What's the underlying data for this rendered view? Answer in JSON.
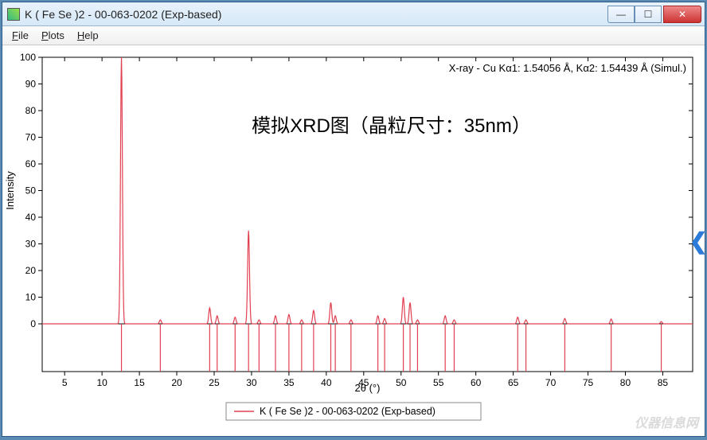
{
  "window": {
    "title": "K ( Fe Se )2 - 00-063-0202 (Exp-based)"
  },
  "menu": {
    "file": "File",
    "plots": "Plots",
    "help": "Help"
  },
  "chart": {
    "type": "line",
    "info_text": "X-ray - Cu Kα1: 1.54056 Å, Kα2: 1.54439 Å (Simul.)",
    "overlay_text": "模拟XRD图（晶粒尺寸：35nm）",
    "overlay_fontsize": 24,
    "overlay_color": "#000000",
    "xlabel": "2θ (°)",
    "ylabel": "Intensity",
    "label_fontsize": 13,
    "legend_label": "K ( Fe Se )2 - 00-063-0202 (Exp-based)",
    "xlim": [
      2,
      89
    ],
    "ylim": [
      0,
      100
    ],
    "xtick_step": 5,
    "ytick_step": 10,
    "tick_fontsize": 12,
    "background_color": "#ffffff",
    "axis_color": "#000000",
    "grid_color": "#bbbbbb",
    "line_color": "#e04050",
    "line_width": 1.2,
    "peaks": [
      {
        "x": 12.6,
        "h": 100
      },
      {
        "x": 17.8,
        "h": 1.5
      },
      {
        "x": 24.4,
        "h": 6
      },
      {
        "x": 25.4,
        "h": 3
      },
      {
        "x": 27.8,
        "h": 2.5
      },
      {
        "x": 29.6,
        "h": 35
      },
      {
        "x": 31.0,
        "h": 1.5
      },
      {
        "x": 33.2,
        "h": 3
      },
      {
        "x": 35.0,
        "h": 3.5
      },
      {
        "x": 36.7,
        "h": 1.5
      },
      {
        "x": 38.3,
        "h": 5
      },
      {
        "x": 40.6,
        "h": 8
      },
      {
        "x": 41.2,
        "h": 3
      },
      {
        "x": 43.3,
        "h": 1.5
      },
      {
        "x": 46.9,
        "h": 3
      },
      {
        "x": 47.8,
        "h": 2
      },
      {
        "x": 50.3,
        "h": 10
      },
      {
        "x": 51.2,
        "h": 8
      },
      {
        "x": 52.2,
        "h": 1.5
      },
      {
        "x": 55.9,
        "h": 3
      },
      {
        "x": 57.1,
        "h": 1.5
      },
      {
        "x": 65.6,
        "h": 2.5
      },
      {
        "x": 66.7,
        "h": 1.5
      },
      {
        "x": 71.9,
        "h": 2
      },
      {
        "x": 78.1,
        "h": 1.8
      },
      {
        "x": 84.8,
        "h": 0.8
      }
    ],
    "stick_region": {
      "y_top": 100,
      "y_bottom": 0
    }
  },
  "side_arrow": "❮",
  "watermark": "仪器信息网"
}
